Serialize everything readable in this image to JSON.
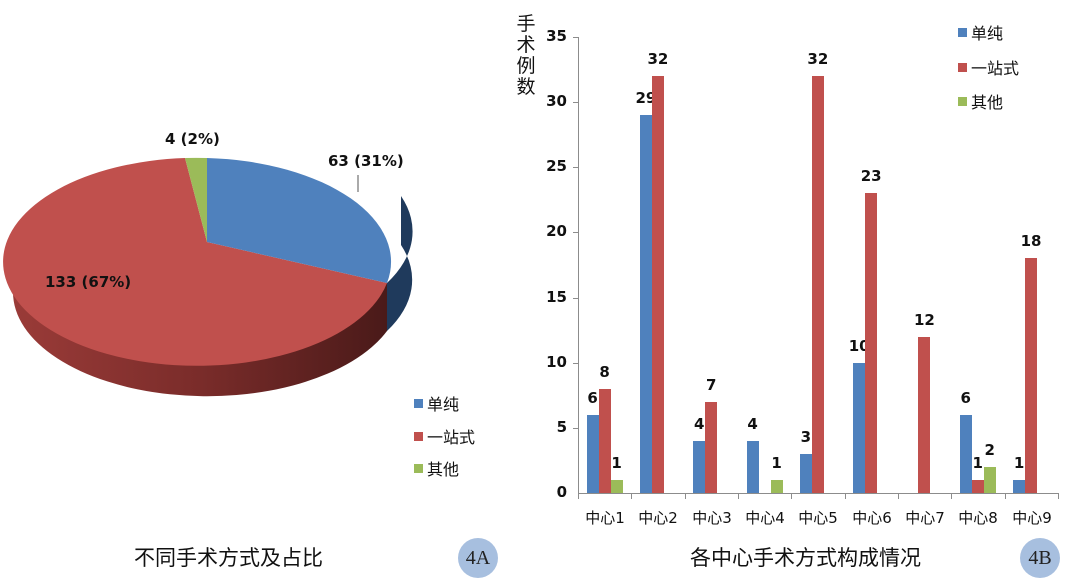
{
  "chart_data": [
    {
      "type": "pie",
      "title": "不同手术方式及占比",
      "badge": "4A",
      "three_d": true,
      "categories": [
        "单纯",
        "一站式",
        "其他"
      ],
      "values": [
        63,
        133,
        4
      ],
      "percentages": [
        31,
        67,
        2
      ],
      "data_labels": [
        "63 (31%)",
        "133 (67%)",
        "4 (2%)"
      ],
      "colors": [
        "#4f81bd",
        "#c0504d",
        "#9bbb59"
      ],
      "legend": [
        "单纯",
        "一站式",
        "其他"
      ],
      "legend_position": "right-bottom"
    },
    {
      "type": "bar",
      "title": "各中心手术方式构成情况",
      "badge": "4B",
      "ylabel": "手术例数",
      "xlabel": "",
      "ylim": [
        0,
        35
      ],
      "yticks": [
        0,
        5,
        10,
        15,
        20,
        25,
        30,
        35
      ],
      "grid": false,
      "categories": [
        "中心1",
        "中心2",
        "中心3",
        "中心4",
        "中心5",
        "中心6",
        "中心7",
        "中心8",
        "中心9"
      ],
      "series": [
        {
          "name": "单纯",
          "color": "#4f81bd",
          "values": [
            6,
            29,
            4,
            4,
            3,
            10,
            0,
            6,
            1
          ]
        },
        {
          "name": "一站式",
          "color": "#c0504d",
          "values": [
            8,
            32,
            7,
            0,
            32,
            23,
            12,
            1,
            18
          ]
        },
        {
          "name": "其他",
          "color": "#9bbb59",
          "values": [
            1,
            0,
            0,
            1,
            0,
            0,
            0,
            2,
            0
          ]
        }
      ],
      "legend": [
        "单纯",
        "一站式",
        "其他"
      ],
      "legend_position": "top-right"
    }
  ],
  "pie": {
    "labels": {
      "blue": "63 (31%)",
      "red": "133 (67%)",
      "green": "4 (2%)"
    },
    "legend": [
      {
        "label": "单纯",
        "color": "#4f81bd"
      },
      {
        "label": "一站式",
        "color": "#c0504d"
      },
      {
        "label": "其他",
        "color": "#9bbb59"
      }
    ],
    "caption": "不同手术方式及占比",
    "badge": "4A"
  },
  "bar": {
    "ylabel_chars": [
      "手",
      "术",
      "例",
      "数"
    ],
    "yticks": [
      "0",
      "5",
      "10",
      "15",
      "20",
      "25",
      "30",
      "35"
    ],
    "categories": [
      "中心1",
      "中心2",
      "中心3",
      "中心4",
      "中心5",
      "中心6",
      "中心7",
      "中心8",
      "中心9"
    ],
    "legend": [
      {
        "label": "单纯",
        "color": "#4f81bd"
      },
      {
        "label": "一站式",
        "color": "#c0504d"
      },
      {
        "label": "其他",
        "color": "#9bbb59"
      }
    ],
    "caption": "各中心手术方式构成情况",
    "badge": "4B"
  }
}
